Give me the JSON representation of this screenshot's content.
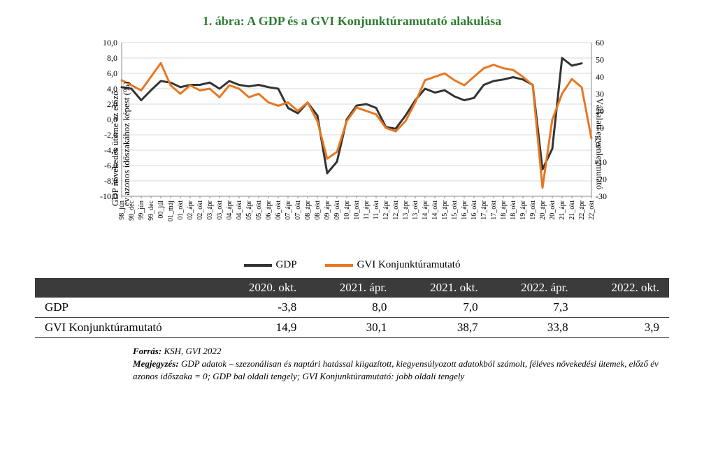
{
  "title": "1. ábra: A GDP és a GVI Konjunktúramutató alakulása",
  "chart": {
    "type": "line",
    "background_color": "#ffffff",
    "grid_color": "#d9d9d9",
    "label_fontsize": 13,
    "tick_fontsize": 12,
    "left_axis_title": "GDP növekedés üteme az előző\név azonos időszakához képest (%)",
    "right_axis_title": "Vállalati egyenlegmutató",
    "left_ylim": [
      -10,
      10
    ],
    "left_ytick_step": 2,
    "right_ylim": [
      -30,
      60
    ],
    "right_ytick_step": 10,
    "x_categories": [
      "98_jún",
      "98_dec",
      "99_jún",
      "99_dec",
      "00_júl",
      "01_máj",
      "01_okt",
      "02_ápr",
      "02_okt",
      "03_ápr",
      "03_okt",
      "04_ápr",
      "04_okt",
      "05_ápr",
      "05_okt",
      "06_ápr",
      "06_okt",
      "07_ápr",
      "07_okt",
      "08_ápr",
      "08_okt",
      "09_ápr",
      "09_okt",
      "10_ápr",
      "10_okt",
      "11_ápr",
      "11_okt",
      "12_ápr",
      "12_okt",
      "13_ápr",
      "13_okt",
      "14_ápr",
      "14_okt",
      "15_ápr",
      "15_okt",
      "16_ápr",
      "16_okt",
      "17_ápr",
      "17_okt",
      "18_ápr",
      "18_okt",
      "19_ápr",
      "19_okt",
      "20_ápr",
      "20_okt",
      "21_ápr",
      "21_okt",
      "22_ápr",
      "22_okt"
    ],
    "series": [
      {
        "name": "GDP",
        "color": "#333333",
        "line_width": 3,
        "axis": "left",
        "values": [
          4.2,
          4.0,
          2.5,
          3.8,
          5.0,
          4.8,
          4.2,
          4.5,
          4.5,
          4.8,
          4.0,
          5.0,
          4.5,
          4.3,
          4.5,
          4.2,
          4.0,
          1.5,
          0.8,
          2.2,
          0.5,
          -7.0,
          -5.5,
          0.0,
          1.8,
          2.0,
          1.5,
          -1.0,
          -1.2,
          0.5,
          2.5,
          4.0,
          3.5,
          3.8,
          3.0,
          2.5,
          2.8,
          4.5,
          5.0,
          5.2,
          5.5,
          5.2,
          4.5,
          -6.5,
          -3.8,
          8.0,
          7.0,
          7.3,
          null
        ]
      },
      {
        "name": "GVI Konjunktúramutató",
        "color": "#e87722",
        "line_width": 3,
        "axis": "right",
        "values": [
          38,
          35,
          32,
          40,
          48,
          35,
          30,
          35,
          32,
          33,
          28,
          35,
          33,
          28,
          30,
          25,
          23,
          25,
          20,
          25,
          14,
          -8,
          -4,
          14,
          22,
          20,
          18,
          10,
          8,
          14,
          25,
          38,
          40,
          42,
          38,
          35,
          40,
          45,
          47,
          45,
          44,
          40,
          35,
          -25,
          14.9,
          30.1,
          38.7,
          33.8,
          3.9
        ]
      }
    ]
  },
  "legend": {
    "items": [
      {
        "label": "GDP",
        "color": "#333333",
        "line_width": 4
      },
      {
        "label": "GVI Konjunktúramutató",
        "color": "#e87722",
        "line_width": 4
      }
    ]
  },
  "table": {
    "columns": [
      "",
      "2020. okt.",
      "2021. ápr.",
      "2021. okt.",
      "2022. ápr.",
      "2022. okt."
    ],
    "rows": [
      [
        "GDP",
        "-3,8",
        "8,0",
        "7,0",
        "7,3",
        ""
      ],
      [
        "GVI Konjunktúramutató",
        "14,9",
        "30,1",
        "38,7",
        "33,8",
        "3,9"
      ]
    ],
    "header_bg": "#3b3b3b",
    "header_fg": "#ffffff",
    "row_border": "#444444",
    "font_size": 17
  },
  "footnotes": {
    "source_label": "Forrás:",
    "source_text": " KSH, GVI 2022",
    "note_label": "Megjegyzés:",
    "note_text": " GDP adatok – szezonálisan és naptári hatással kiigazított, kiegyensúlyozott adatokból számolt, féléves növekedési ütemek, előző év azonos időszaka = 0; GDP bal oldali tengely; GVI Konjunktúramutató: jobb oldali tengely"
  }
}
